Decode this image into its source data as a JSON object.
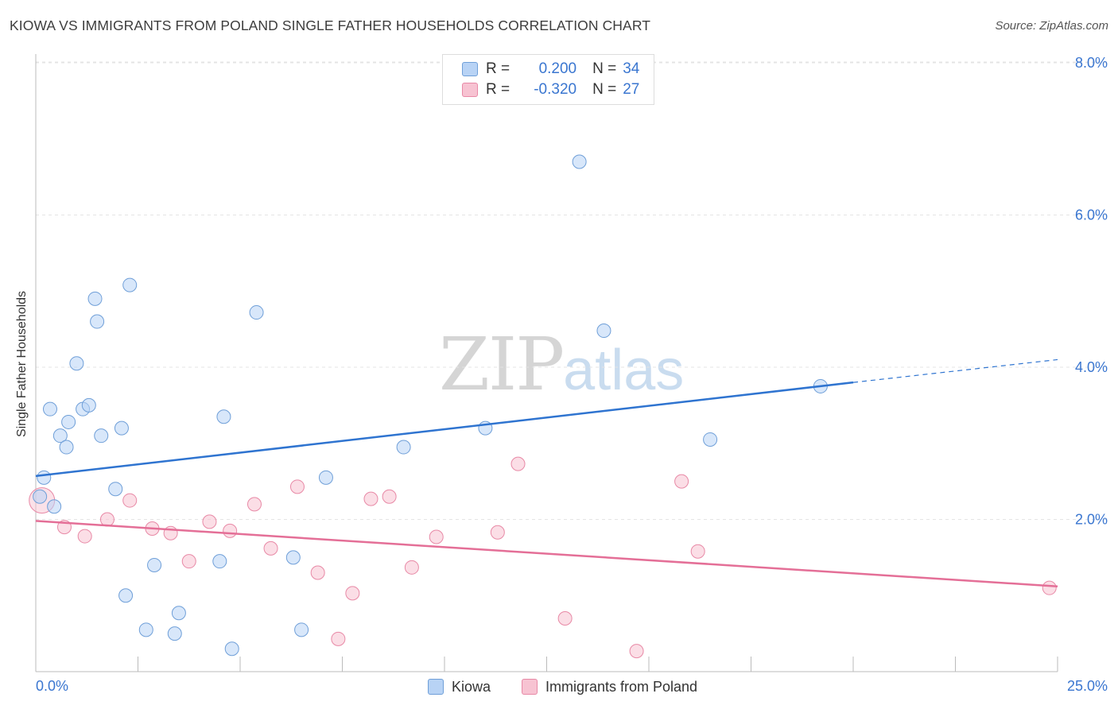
{
  "title": "KIOWA VS IMMIGRANTS FROM POLAND SINGLE FATHER HOUSEHOLDS CORRELATION CHART",
  "source": "Source: ZipAtlas.com",
  "watermark": {
    "zip": "ZIP",
    "atlas": "atlas"
  },
  "legend": {
    "kiowa": {
      "r_label": "R =",
      "r_value": "0.200",
      "n_label": "N =",
      "n_value": "34"
    },
    "poland": {
      "r_label": "R =",
      "r_value": "-0.320",
      "n_label": "N =",
      "n_value": "27"
    }
  },
  "bottom_legend": {
    "kiowa": "Kiowa",
    "poland": "Immigrants from Poland"
  },
  "colors": {
    "kiowa_fill": "#b8d3f5",
    "kiowa_stroke": "#6f9fd8",
    "kiowa_line": "#2f74d0",
    "poland_fill": "#f7c3d2",
    "poland_stroke": "#e889a6",
    "poland_line": "#e46f97",
    "value_text": "#3a76d0",
    "grid": "#e4e4e4"
  },
  "chart_data": {
    "type": "scatter",
    "title": "KIOWA VS IMMIGRANTS FROM POLAND SINGLE FATHER HOUSEHOLDS CORRELATION CHART",
    "xlabel": "",
    "ylabel": "Single Father Households",
    "xlim": [
      0,
      25
    ],
    "ylim": [
      0,
      8.0
    ],
    "x_tick_labels": [
      "0.0%",
      "25.0%"
    ],
    "y_ticks": [
      2,
      4,
      6,
      8
    ],
    "y_tick_labels": [
      "2.0%",
      "4.0%",
      "6.0%",
      "8.0%"
    ],
    "grid": true,
    "legend_position": "top-center",
    "series": [
      {
        "name": "Kiowa",
        "color": "#6f9fd8",
        "points": [
          [
            0.1,
            2.3
          ],
          [
            0.2,
            2.55
          ],
          [
            0.35,
            3.45
          ],
          [
            0.45,
            2.17
          ],
          [
            0.6,
            3.1
          ],
          [
            0.75,
            2.95
          ],
          [
            0.8,
            3.28
          ],
          [
            1.0,
            4.05
          ],
          [
            1.15,
            3.45
          ],
          [
            1.3,
            3.5
          ],
          [
            1.45,
            4.9
          ],
          [
            1.5,
            4.6
          ],
          [
            1.6,
            3.1
          ],
          [
            1.95,
            2.4
          ],
          [
            2.1,
            3.2
          ],
          [
            2.2,
            1.0
          ],
          [
            2.3,
            5.08
          ],
          [
            2.7,
            0.55
          ],
          [
            2.9,
            1.4
          ],
          [
            3.4,
            0.5
          ],
          [
            3.5,
            0.77
          ],
          [
            4.5,
            1.45
          ],
          [
            4.6,
            3.35
          ],
          [
            4.8,
            0.3
          ],
          [
            5.4,
            4.72
          ],
          [
            6.3,
            1.5
          ],
          [
            6.5,
            0.55
          ],
          [
            7.1,
            2.55
          ],
          [
            9.0,
            2.95
          ],
          [
            11.0,
            3.2
          ],
          [
            13.3,
            6.7
          ],
          [
            13.9,
            4.48
          ],
          [
            16.5,
            3.05
          ],
          [
            19.2,
            3.75
          ]
        ],
        "trend": {
          "x": [
            0,
            20
          ],
          "y": [
            2.57,
            3.8
          ],
          "dashed_x": [
            20,
            25
          ],
          "dashed_y": [
            3.8,
            4.1
          ]
        }
      },
      {
        "name": "Immigrants from Poland",
        "color": "#e889a6",
        "points": [
          [
            0.15,
            2.25
          ],
          [
            0.7,
            1.9
          ],
          [
            1.2,
            1.78
          ],
          [
            1.75,
            2.0
          ],
          [
            2.3,
            2.25
          ],
          [
            2.85,
            1.88
          ],
          [
            3.3,
            1.82
          ],
          [
            3.75,
            1.45
          ],
          [
            4.25,
            1.97
          ],
          [
            4.75,
            1.85
          ],
          [
            5.35,
            2.2
          ],
          [
            5.75,
            1.62
          ],
          [
            6.4,
            2.43
          ],
          [
            6.9,
            1.3
          ],
          [
            7.4,
            0.43
          ],
          [
            7.75,
            1.03
          ],
          [
            8.2,
            2.27
          ],
          [
            8.65,
            2.3
          ],
          [
            9.2,
            1.37
          ],
          [
            9.8,
            1.77
          ],
          [
            11.3,
            1.83
          ],
          [
            11.8,
            2.73
          ],
          [
            12.95,
            0.7
          ],
          [
            14.7,
            0.27
          ],
          [
            15.8,
            2.5
          ],
          [
            16.2,
            1.58
          ],
          [
            24.8,
            1.1
          ]
        ],
        "trend": {
          "x": [
            0,
            25
          ],
          "y": [
            1.98,
            1.12
          ]
        }
      }
    ]
  }
}
